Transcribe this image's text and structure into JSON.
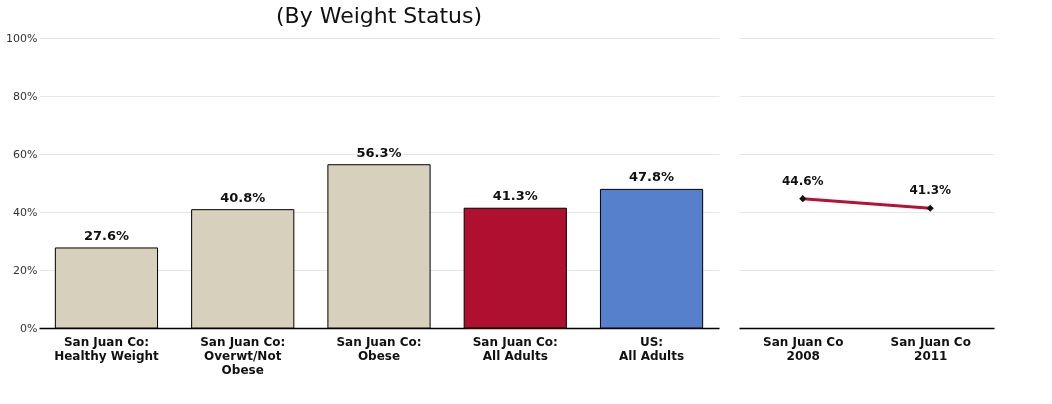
{
  "chart_data": [
    {
      "type": "bar",
      "title": "(By Weight Status)",
      "categories": [
        "San Juan Co:\nHealthy Weight",
        "San Juan Co:\nOverwt/Not\nObese",
        "San Juan Co:\nObese",
        "San Juan Co:\nAll Adults",
        "US:\nAll Adults"
      ],
      "values": [
        27.6,
        40.8,
        56.3,
        41.3,
        47.8
      ],
      "colors": [
        "#d6d0bc",
        "#d6d0bc",
        "#d6d0bc",
        "#b01030",
        "#5780cc"
      ],
      "value_labels": [
        "27.6%",
        "40.8%",
        "56.3%",
        "41.3%",
        "47.8%"
      ],
      "ylim": [
        0,
        100
      ],
      "yticks": [
        {
          "value": 0,
          "label": "0%"
        },
        {
          "value": 20,
          "label": "20%"
        },
        {
          "value": 40,
          "label": "40%"
        },
        {
          "value": 60,
          "label": "60%"
        },
        {
          "value": 80,
          "label": "80%"
        },
        {
          "value": 100,
          "label": "100%"
        }
      ],
      "grid": "y"
    },
    {
      "type": "line",
      "categories": [
        "San Juan Co\n2008",
        "San Juan Co\n2011"
      ],
      "series": [
        {
          "color": "#b5123a",
          "values": [
            44.6,
            41.3
          ],
          "value_labels": [
            "44.6%",
            "41.3%"
          ]
        }
      ],
      "ylim": [
        0,
        100
      ],
      "yticks": [
        0,
        20,
        40,
        60,
        80,
        100
      ],
      "grid": "y",
      "tick_labels": "x",
      "marker": "diamond",
      "line_style": "solid"
    }
  ]
}
